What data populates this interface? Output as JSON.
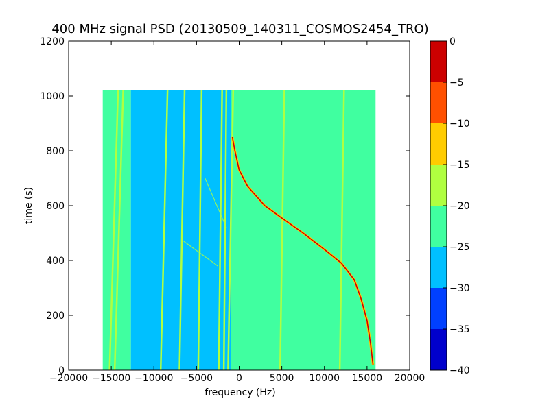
{
  "chart_data": {
    "type": "heatmap",
    "title": "400 MHz signal PSD (20130509_140311_COSMOS2454_TRO)",
    "xlabel": "frequency (Hz)",
    "ylabel": "time (s)",
    "xlim": [
      -20000,
      20000
    ],
    "ylim": [
      0,
      1200
    ],
    "x_ticks": [
      -20000,
      -15000,
      -10000,
      -5000,
      0,
      5000,
      10000,
      15000,
      20000
    ],
    "x_tick_labels": [
      "−20000",
      "−15000",
      "−10000",
      "−5000",
      "0",
      "5000",
      "10000",
      "15000",
      "20000"
    ],
    "y_ticks": [
      0,
      200,
      400,
      600,
      800,
      1000,
      1200
    ],
    "y_tick_labels": [
      "0",
      "200",
      "400",
      "600",
      "800",
      "1000",
      "1200"
    ],
    "data_extent": {
      "freq_min": -16000,
      "freq_max": 16000,
      "time_min": 0,
      "time_max": 1020
    },
    "regions": [
      {
        "level_db": -22.5,
        "freq_from": -16000,
        "freq_to": -12700
      },
      {
        "level_db": -27.5,
        "freq_from": -12700,
        "freq_to": -1000
      },
      {
        "level_db": -22.5,
        "freq_from": -1000,
        "freq_to": 16000
      }
    ],
    "vertical_lines": [
      {
        "level_db": -17.5,
        "freq_start": -15200,
        "freq_end": -14200
      },
      {
        "level_db": -17.5,
        "freq_start": -14600,
        "freq_end": -13600
      },
      {
        "level_db": -17.5,
        "freq_start": -9200,
        "freq_end": -8400
      },
      {
        "level_db": -17.5,
        "freq_start": -7000,
        "freq_end": -6400
      },
      {
        "level_db": -17.5,
        "freq_start": -4800,
        "freq_end": -4400
      },
      {
        "level_db": -17.5,
        "freq_start": -2400,
        "freq_end": -2000
      },
      {
        "level_db": -17.5,
        "freq_start": -1800,
        "freq_end": -1500
      },
      {
        "level_db": -17.5,
        "freq_start": -1300,
        "freq_end": -700
      },
      {
        "level_db": -17.5,
        "freq_start": 4800,
        "freq_end": 5300
      },
      {
        "level_db": -17.5,
        "freq_start": 11800,
        "freq_end": 12300
      }
    ],
    "doppler_track": {
      "level_db": -2.5,
      "points": [
        {
          "freq": 15700,
          "time": 20
        },
        {
          "freq": 15400,
          "time": 100
        },
        {
          "freq": 15000,
          "time": 180
        },
        {
          "freq": 14300,
          "time": 260
        },
        {
          "freq": 13500,
          "time": 330
        },
        {
          "freq": 12000,
          "time": 390
        },
        {
          "freq": 10000,
          "time": 440
        },
        {
          "freq": 7500,
          "time": 500
        },
        {
          "freq": 5000,
          "time": 555
        },
        {
          "freq": 3000,
          "time": 600
        },
        {
          "freq": 1000,
          "time": 670
        },
        {
          "freq": 0,
          "time": 730
        },
        {
          "freq": -500,
          "time": 800
        },
        {
          "freq": -800,
          "time": 850
        }
      ]
    },
    "faint_tracks": [
      {
        "level_db": -17.5,
        "points": [
          {
            "freq": -4000,
            "time": 700
          },
          {
            "freq": -1500,
            "time": 520
          }
        ]
      },
      {
        "level_db": -17.5,
        "points": [
          {
            "freq": -6500,
            "time": 470
          },
          {
            "freq": -2500,
            "time": 380
          }
        ]
      }
    ],
    "colorbar": {
      "levels": [
        -40,
        -35,
        -30,
        -25,
        -20,
        -15,
        -10,
        -5,
        0
      ],
      "tick_labels": [
        "−40",
        "−35",
        "−30",
        "−25",
        "−20",
        "−15",
        "−10",
        "−5",
        "0"
      ],
      "colors": [
        "#0000cc",
        "#0040ff",
        "#00c0ff",
        "#40ffa0",
        "#b0ff40",
        "#ffcc00",
        "#ff5000",
        "#cc0000"
      ]
    }
  }
}
